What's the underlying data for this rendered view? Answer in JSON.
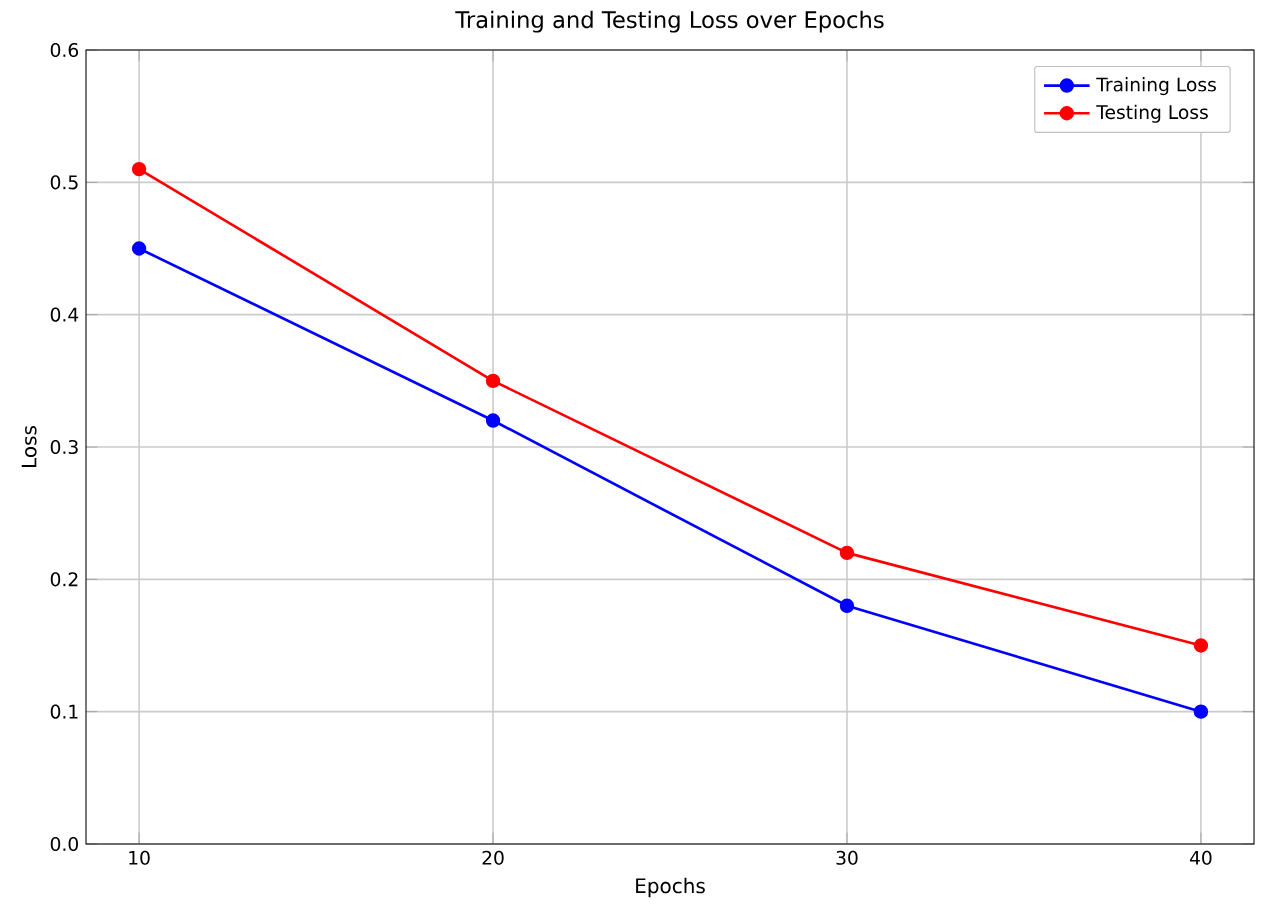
{
  "chart_data": {
    "type": "line",
    "title": "Training and Testing Loss over Epochs",
    "xlabel": "Epochs",
    "ylabel": "Loss",
    "x": [
      10,
      20,
      30,
      40
    ],
    "series": [
      {
        "name": "Training Loss",
        "color": "#0000ff",
        "values": [
          0.45,
          0.32,
          0.18,
          0.1
        ]
      },
      {
        "name": "Testing Loss",
        "color": "#ff0000",
        "values": [
          0.51,
          0.35,
          0.22,
          0.15
        ]
      }
    ],
    "xlim": [
      8.5,
      41.5
    ],
    "xticks": [
      10,
      20,
      30,
      40
    ],
    "ylim": [
      0,
      0.6
    ],
    "yticks": [
      {
        "value": 0,
        "label": "0.0"
      },
      0.1,
      0.2,
      0.3,
      0.4,
      0.5,
      0.6
    ],
    "grid": true,
    "legend": "top right",
    "marker": "circle",
    "line_style": "solid"
  }
}
